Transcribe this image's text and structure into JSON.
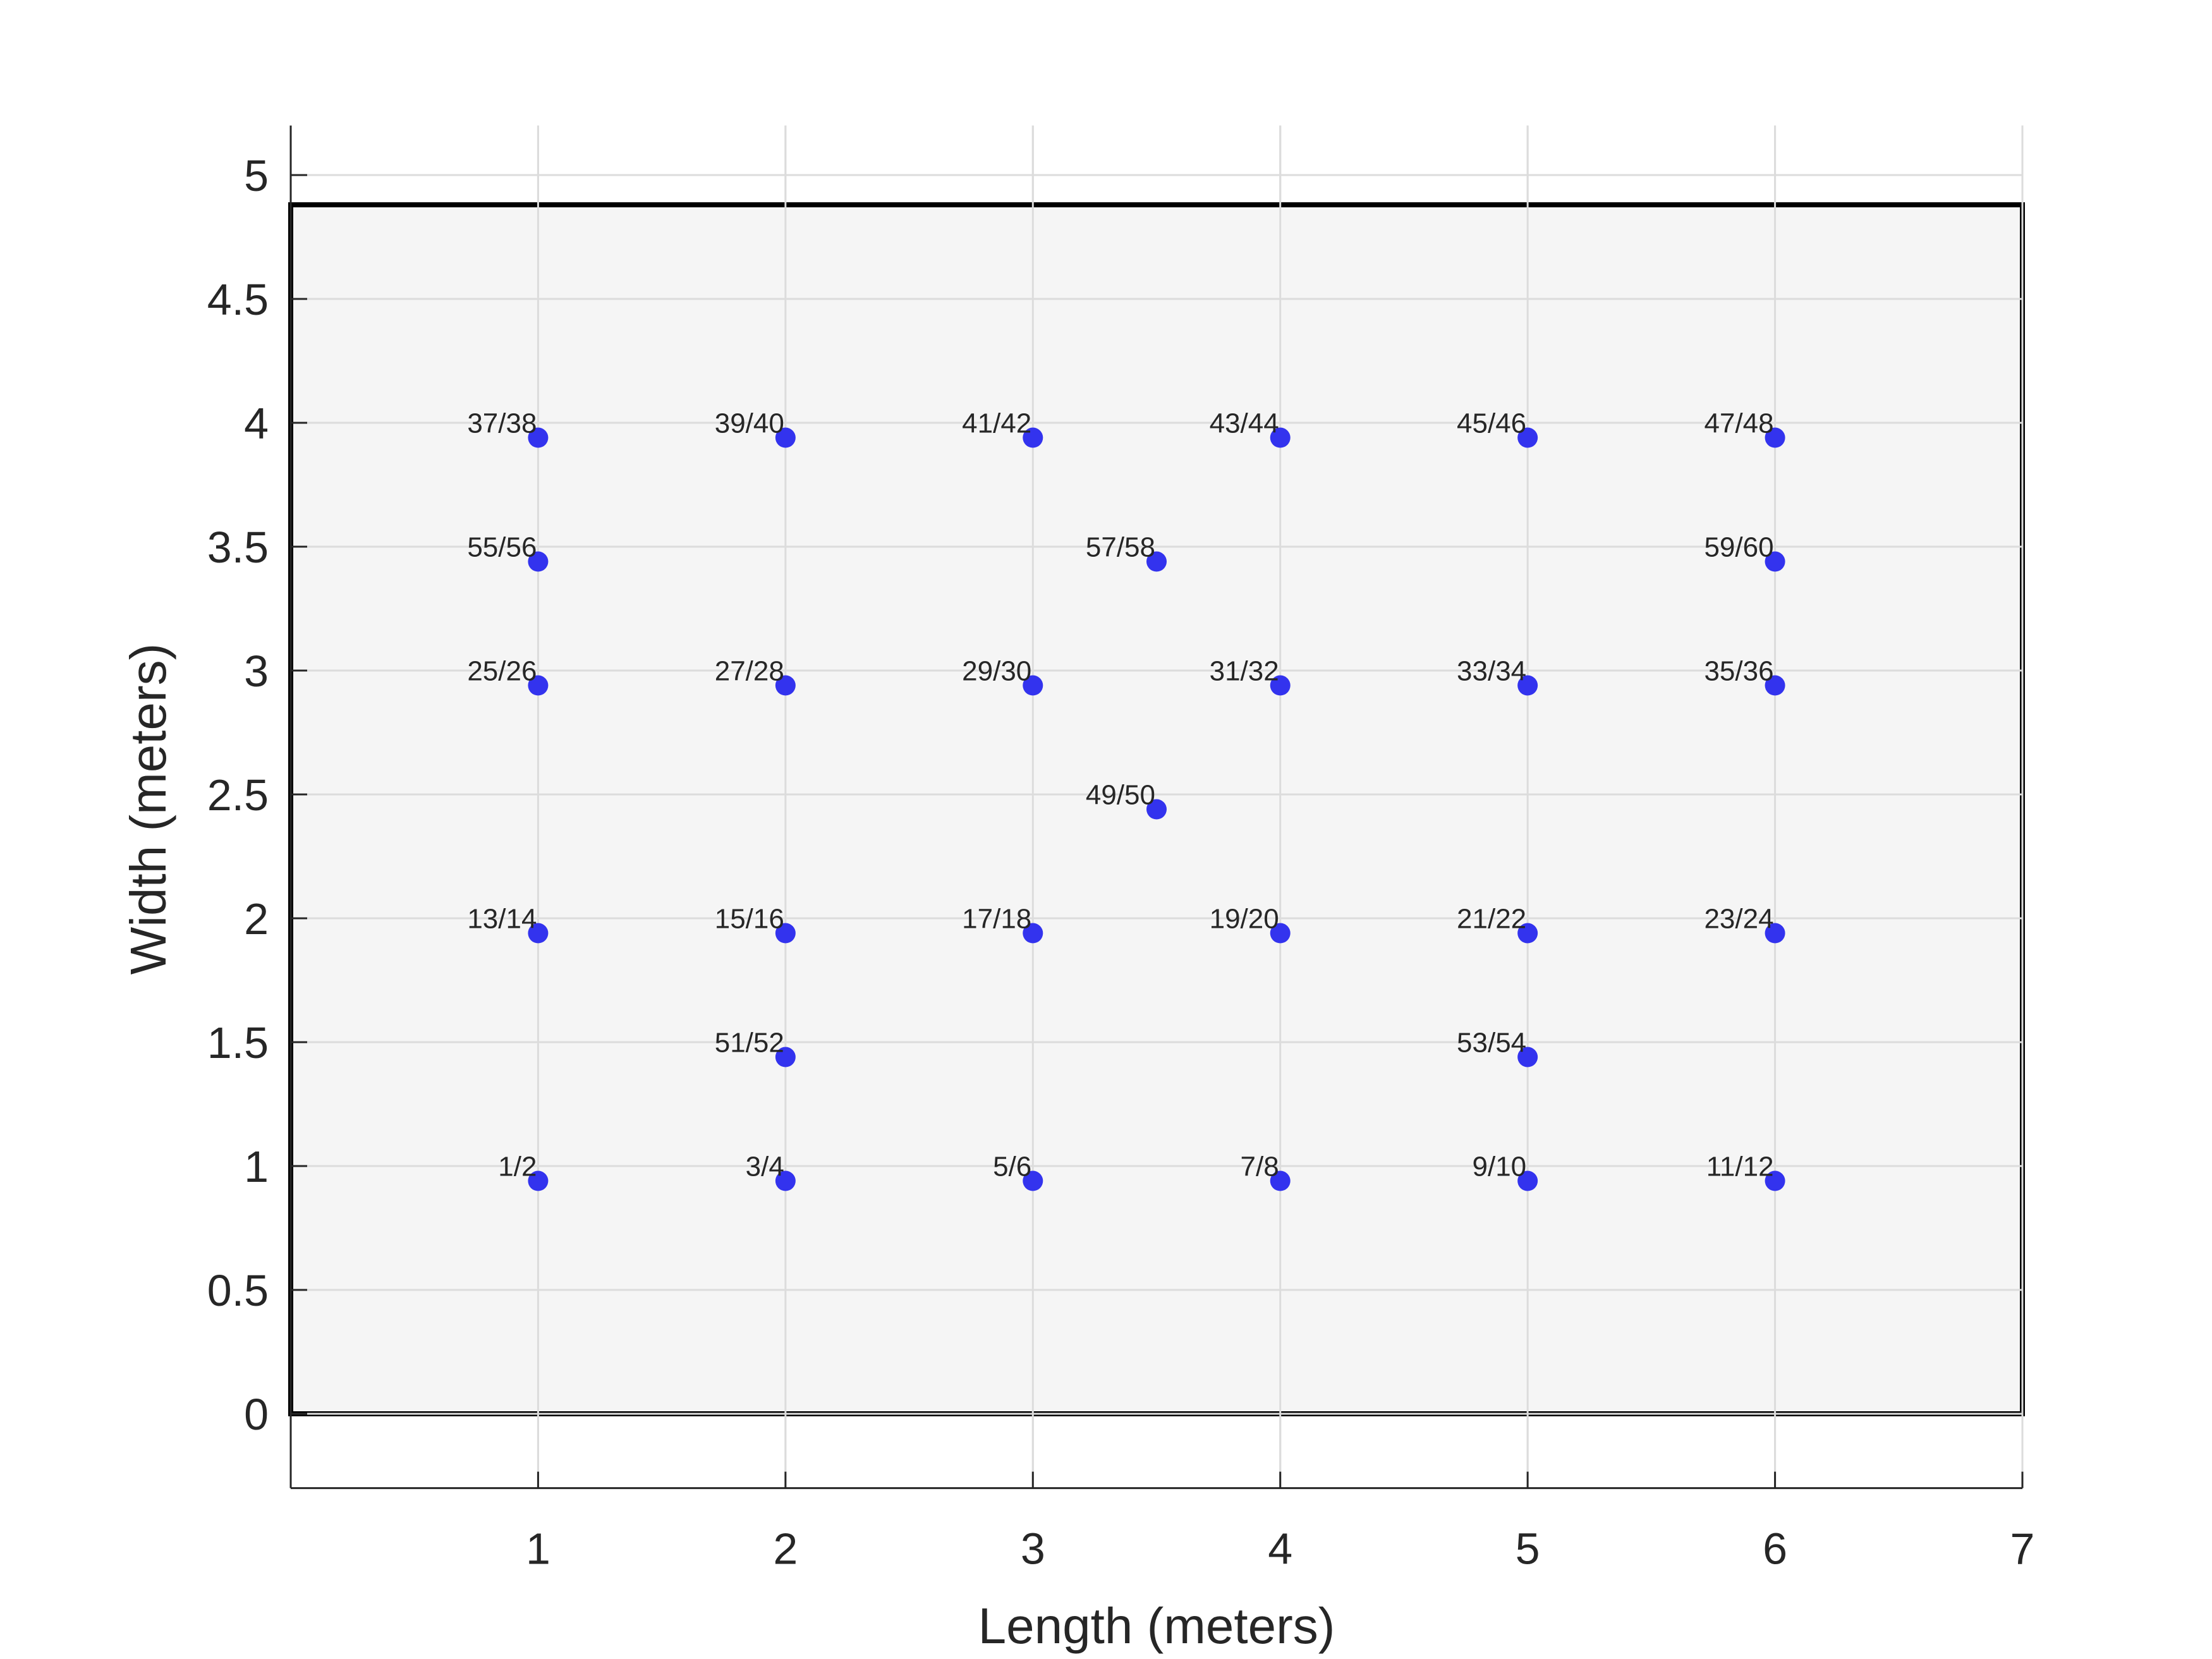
{
  "chart_data": {
    "type": "scatter",
    "title": "",
    "xlabel": "Length (meters)",
    "ylabel": "Width (meters)",
    "xlim": [
      0,
      7
    ],
    "ylim": [
      -0.3,
      5.2
    ],
    "xticks": [
      1,
      2,
      3,
      4,
      5,
      6,
      7
    ],
    "xtick_labels": [
      "1",
      "2",
      "3",
      "4",
      "5",
      "6",
      "7"
    ],
    "yticks": [
      0,
      0.5,
      1,
      1.5,
      2,
      2.5,
      3,
      3.5,
      4,
      4.5,
      5
    ],
    "ytick_labels": [
      "0",
      "0.5",
      "1",
      "1.5",
      "2",
      "2.5",
      "3",
      "3.5",
      "4",
      "4.5",
      "5"
    ],
    "grid": true,
    "room": {
      "x": [
        0,
        7
      ],
      "y": [
        0,
        4.88
      ],
      "fill": "#f5f5f5",
      "stroke": "#000000"
    },
    "marker_color": "#3333ee",
    "points": [
      {
        "x": 1,
        "y": 0.94,
        "label": "1/2"
      },
      {
        "x": 2,
        "y": 0.94,
        "label": "3/4"
      },
      {
        "x": 3,
        "y": 0.94,
        "label": "5/6"
      },
      {
        "x": 4,
        "y": 0.94,
        "label": "7/8"
      },
      {
        "x": 5,
        "y": 0.94,
        "label": "9/10"
      },
      {
        "x": 6,
        "y": 0.94,
        "label": "11/12"
      },
      {
        "x": 1,
        "y": 1.94,
        "label": "13/14"
      },
      {
        "x": 2,
        "y": 1.94,
        "label": "15/16"
      },
      {
        "x": 3,
        "y": 1.94,
        "label": "17/18"
      },
      {
        "x": 4,
        "y": 1.94,
        "label": "19/20"
      },
      {
        "x": 5,
        "y": 1.94,
        "label": "21/22"
      },
      {
        "x": 6,
        "y": 1.94,
        "label": "23/24"
      },
      {
        "x": 1,
        "y": 2.94,
        "label": "25/26"
      },
      {
        "x": 2,
        "y": 2.94,
        "label": "27/28"
      },
      {
        "x": 3,
        "y": 2.94,
        "label": "29/30"
      },
      {
        "x": 4,
        "y": 2.94,
        "label": "31/32"
      },
      {
        "x": 5,
        "y": 2.94,
        "label": "33/34"
      },
      {
        "x": 6,
        "y": 2.94,
        "label": "35/36"
      },
      {
        "x": 1,
        "y": 3.94,
        "label": "37/38"
      },
      {
        "x": 2,
        "y": 3.94,
        "label": "39/40"
      },
      {
        "x": 3,
        "y": 3.94,
        "label": "41/42"
      },
      {
        "x": 4,
        "y": 3.94,
        "label": "43/44"
      },
      {
        "x": 5,
        "y": 3.94,
        "label": "45/46"
      },
      {
        "x": 6,
        "y": 3.94,
        "label": "47/48"
      },
      {
        "x": 3.5,
        "y": 2.44,
        "label": "49/50"
      },
      {
        "x": 2,
        "y": 1.44,
        "label": "51/52"
      },
      {
        "x": 5,
        "y": 1.44,
        "label": "53/54"
      },
      {
        "x": 1,
        "y": 3.44,
        "label": "55/56"
      },
      {
        "x": 3.5,
        "y": 3.44,
        "label": "57/58"
      },
      {
        "x": 6,
        "y": 3.44,
        "label": "59/60"
      }
    ]
  }
}
